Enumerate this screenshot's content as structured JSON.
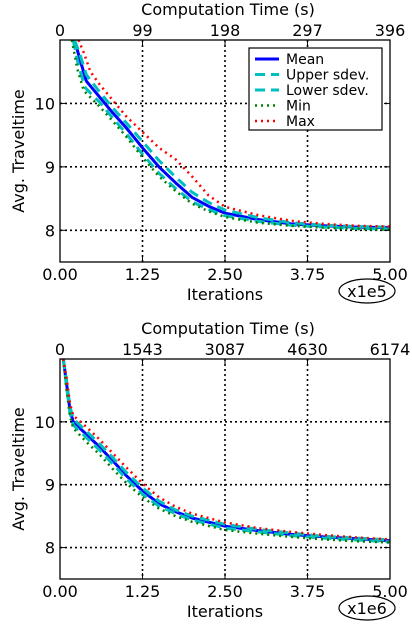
{
  "colors": {
    "mean": "#0000ff",
    "upper_sdev": "#00bfbf",
    "lower_sdev": "#00bfbf",
    "min": "#008000",
    "max": "#ff0000",
    "grid": "#000000",
    "background": "#ffffff"
  },
  "chart_data": [
    {
      "type": "line",
      "title": "Computation Time (s)",
      "xlabel": "Iterations",
      "ylabel": "Avg. Traveltime",
      "x_multiplier_label": "x1e5",
      "xlim": [
        0,
        5
      ],
      "ylim": [
        7.5,
        11.0
      ],
      "xticks": [
        0,
        1.25,
        2.5,
        3.75,
        5.0
      ],
      "xtick_labels": [
        "0.00",
        "1.25",
        "2.50",
        "3.75",
        "5.00"
      ],
      "yticks": [
        8,
        9,
        10
      ],
      "ytick_labels": [
        "8",
        "9",
        "10"
      ],
      "top_axis_ticks": [
        0,
        1.25,
        2.5,
        3.75,
        5.0
      ],
      "top_axis_labels": [
        "0",
        "99",
        "198",
        "297",
        "396"
      ],
      "grid": true,
      "legend_position": "top-right",
      "series": [
        {
          "name": "Mean",
          "style": "solid",
          "x": [
            0.22,
            0.3,
            0.4,
            0.6,
            0.8,
            1.0,
            1.25,
            1.5,
            1.75,
            2.0,
            2.25,
            2.5,
            3.0,
            3.5,
            4.0,
            4.5,
            5.0
          ],
          "y": [
            11.0,
            10.7,
            10.35,
            10.1,
            9.85,
            9.62,
            9.3,
            9.0,
            8.75,
            8.52,
            8.38,
            8.27,
            8.17,
            8.1,
            8.07,
            8.05,
            8.04
          ]
        },
        {
          "name": "Upper sdev.",
          "style": "dashed",
          "x": [
            0.22,
            0.3,
            0.4,
            0.6,
            0.8,
            1.0,
            1.25,
            1.5,
            1.75,
            2.0,
            2.25,
            2.5,
            3.0,
            3.5,
            4.0,
            4.5,
            5.0
          ],
          "y": [
            11.0,
            10.78,
            10.45,
            10.18,
            9.93,
            9.7,
            9.4,
            9.1,
            8.84,
            8.6,
            8.44,
            8.32,
            8.2,
            8.12,
            8.08,
            8.06,
            8.05
          ]
        },
        {
          "name": "Lower sdev.",
          "style": "dashed",
          "x": [
            0.2,
            0.28,
            0.38,
            0.6,
            0.8,
            1.0,
            1.25,
            1.5,
            1.75,
            2.0,
            2.25,
            2.5,
            3.0,
            3.5,
            4.0,
            4.5,
            5.0
          ],
          "y": [
            11.0,
            10.6,
            10.25,
            10.02,
            9.77,
            9.53,
            9.2,
            8.9,
            8.66,
            8.45,
            8.33,
            8.23,
            8.14,
            8.08,
            8.05,
            8.03,
            8.02
          ]
        },
        {
          "name": "Min",
          "style": "dotted",
          "x": [
            0.18,
            0.26,
            0.36,
            0.6,
            0.8,
            1.0,
            1.25,
            1.5,
            1.75,
            2.0,
            2.25,
            2.5,
            3.0,
            3.5,
            4.0,
            4.5,
            5.0
          ],
          "y": [
            11.0,
            10.55,
            10.2,
            9.95,
            9.72,
            9.48,
            9.15,
            8.85,
            8.62,
            8.42,
            8.3,
            8.21,
            8.12,
            8.07,
            8.04,
            8.02,
            8.01
          ]
        },
        {
          "name": "Max",
          "style": "dotted",
          "x": [
            0.28,
            0.36,
            0.46,
            0.6,
            0.8,
            1.0,
            1.25,
            1.5,
            1.75,
            2.0,
            2.25,
            2.5,
            3.0,
            3.5,
            4.0,
            4.5,
            5.0
          ],
          "y": [
            11.0,
            10.8,
            10.5,
            10.3,
            10.05,
            9.8,
            9.55,
            9.3,
            9.12,
            8.85,
            8.55,
            8.37,
            8.24,
            8.15,
            8.1,
            8.07,
            8.06
          ]
        }
      ]
    },
    {
      "type": "line",
      "title": "Computation Time (s)",
      "xlabel": "Iterations",
      "ylabel": "Avg. Traveltime",
      "x_multiplier_label": "x1e6",
      "xlim": [
        0,
        5
      ],
      "ylim": [
        7.5,
        11.0
      ],
      "xticks": [
        0,
        1.25,
        2.5,
        3.75,
        5.0
      ],
      "xtick_labels": [
        "0.00",
        "1.25",
        "2.50",
        "3.75",
        "5.00"
      ],
      "yticks": [
        8,
        9,
        10
      ],
      "ytick_labels": [
        "8",
        "9",
        "10"
      ],
      "top_axis_ticks": [
        0,
        1.25,
        2.5,
        3.75,
        5.0
      ],
      "top_axis_labels": [
        "0",
        "1543",
        "3087",
        "4630",
        "6174"
      ],
      "grid": true,
      "legend_position": "none",
      "series": [
        {
          "name": "Mean",
          "style": "solid",
          "x": [
            0.05,
            0.1,
            0.15,
            0.2,
            0.4,
            0.6,
            0.8,
            1.0,
            1.25,
            1.5,
            1.75,
            2.0,
            2.5,
            3.0,
            3.5,
            4.0,
            4.5,
            5.0
          ],
          "y": [
            11.0,
            10.6,
            10.2,
            10.0,
            9.8,
            9.6,
            9.38,
            9.15,
            8.9,
            8.7,
            8.57,
            8.47,
            8.34,
            8.27,
            8.21,
            8.17,
            8.14,
            8.11
          ]
        },
        {
          "name": "Upper sdev.",
          "style": "dashed",
          "x": [
            0.05,
            0.1,
            0.15,
            0.2,
            0.4,
            0.6,
            0.8,
            1.0,
            1.25,
            1.5,
            1.75,
            2.0,
            2.5,
            3.0,
            3.5,
            4.0,
            4.5,
            5.0
          ],
          "y": [
            11.0,
            10.65,
            10.25,
            10.05,
            9.85,
            9.65,
            9.43,
            9.2,
            8.95,
            8.74,
            8.6,
            8.5,
            8.37,
            8.29,
            8.23,
            8.18,
            8.15,
            8.12
          ]
        },
        {
          "name": "Lower sdev.",
          "style": "dashed",
          "x": [
            0.05,
            0.1,
            0.15,
            0.2,
            0.4,
            0.6,
            0.8,
            1.0,
            1.25,
            1.5,
            1.75,
            2.0,
            2.5,
            3.0,
            3.5,
            4.0,
            4.5,
            5.0
          ],
          "y": [
            11.0,
            10.55,
            10.15,
            9.95,
            9.75,
            9.55,
            9.33,
            9.1,
            8.85,
            8.66,
            8.54,
            8.44,
            8.31,
            8.25,
            8.19,
            8.15,
            8.12,
            8.09
          ]
        },
        {
          "name": "Min",
          "style": "dotted",
          "x": [
            0.05,
            0.1,
            0.15,
            0.2,
            0.4,
            0.6,
            0.8,
            1.0,
            1.25,
            1.5,
            1.75,
            2.0,
            2.5,
            3.0,
            3.5,
            4.0,
            4.5,
            5.0
          ],
          "y": [
            11.0,
            10.5,
            10.1,
            9.9,
            9.68,
            9.48,
            9.25,
            9.03,
            8.8,
            8.62,
            8.5,
            8.41,
            8.28,
            8.22,
            8.17,
            8.13,
            8.1,
            8.08
          ]
        },
        {
          "name": "Max",
          "style": "dotted",
          "x": [
            0.05,
            0.1,
            0.15,
            0.2,
            0.4,
            0.6,
            0.8,
            1.0,
            1.25,
            1.5,
            1.75,
            2.0,
            2.5,
            3.0,
            3.5,
            4.0,
            4.5,
            5.0
          ],
          "y": [
            11.0,
            10.7,
            10.3,
            10.1,
            9.92,
            9.72,
            9.5,
            9.28,
            9.02,
            8.8,
            8.65,
            8.54,
            8.4,
            8.31,
            8.25,
            8.2,
            8.16,
            8.13
          ]
        }
      ]
    }
  ]
}
